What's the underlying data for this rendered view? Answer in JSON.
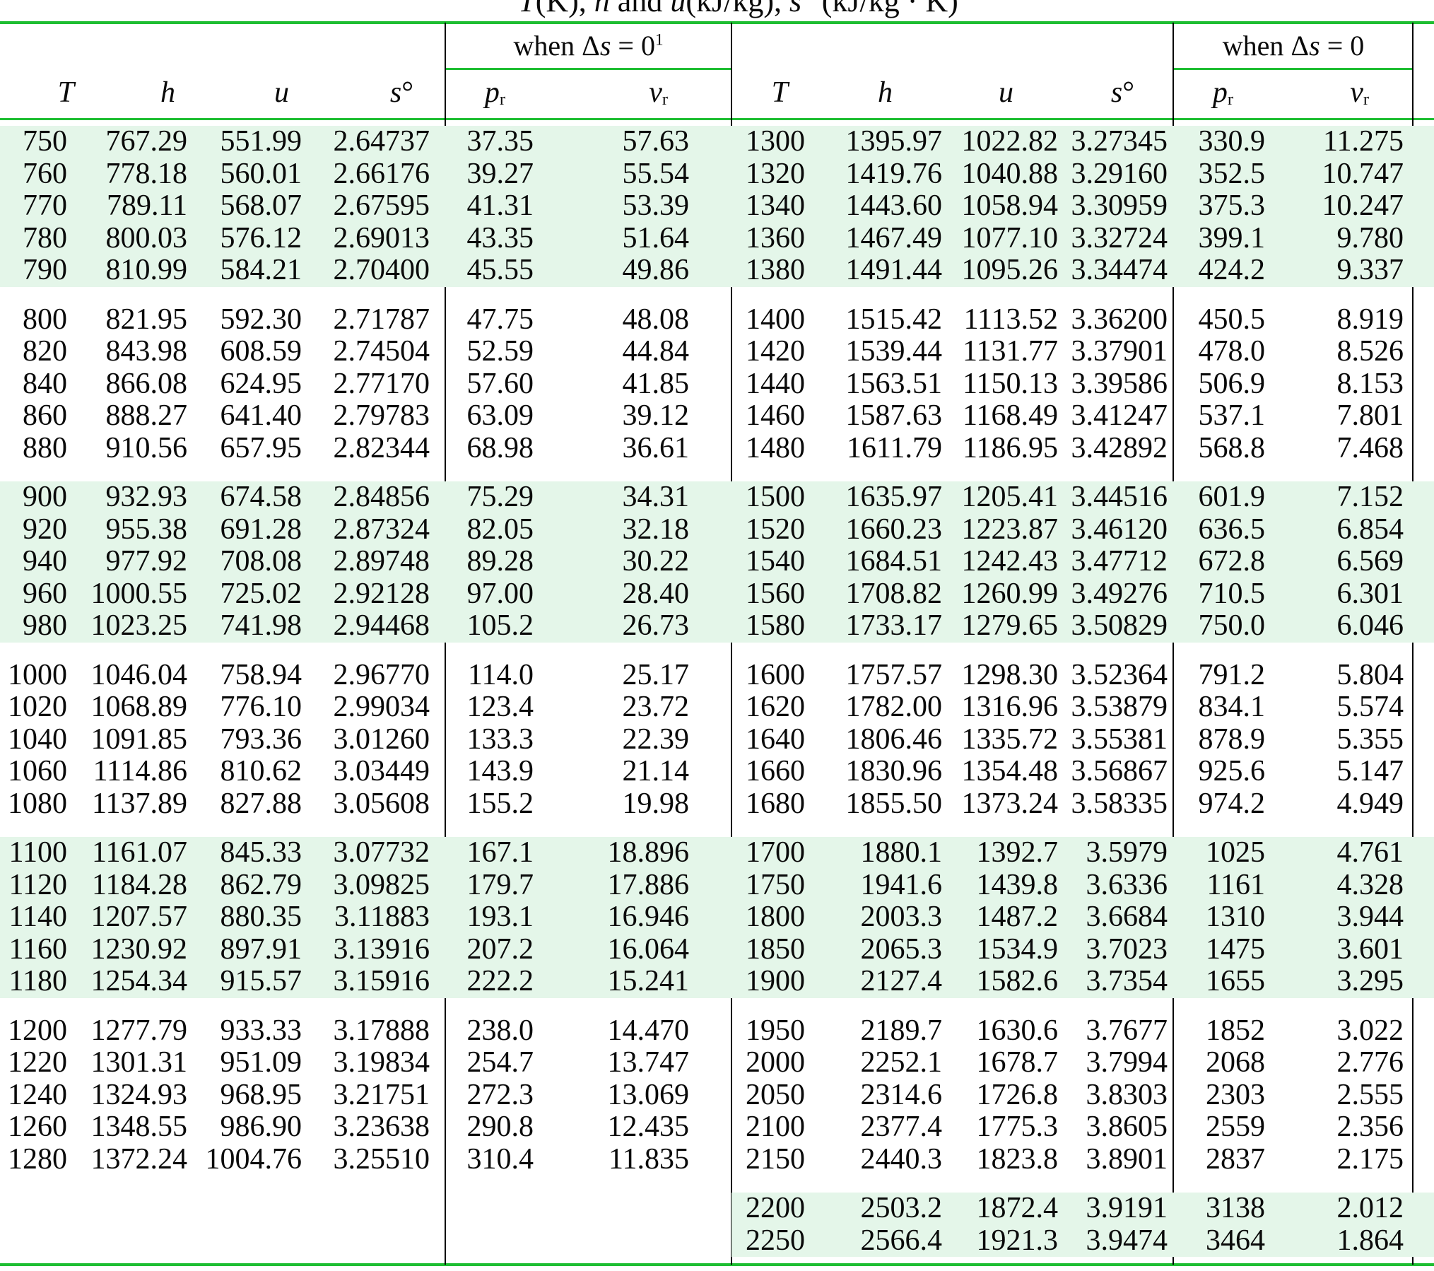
{
  "title_segments": [
    {
      "t": "T",
      "i": true
    },
    {
      "t": "(K), "
    },
    {
      "t": "h",
      "i": true
    },
    {
      "t": " and "
    },
    {
      "t": "u",
      "i": true
    },
    {
      "t": "(kJ/kg), "
    },
    {
      "t": "s",
      "i": true
    },
    {
      "t": "°"
    },
    {
      "t": " (kJ/kg · K)"
    }
  ],
  "header": {
    "when_left": [
      {
        "t": "when Δ"
      },
      {
        "t": "s",
        "i": true
      },
      {
        "t": " = 0"
      },
      {
        "t": "1",
        "sup": true
      }
    ],
    "when_right": [
      {
        "t": "when Δ"
      },
      {
        "t": "s",
        "i": true
      },
      {
        "t": " = 0"
      }
    ],
    "columns": [
      {
        "key": "left-T",
        "segs": [
          {
            "t": "T",
            "i": true
          }
        ]
      },
      {
        "key": "left-h",
        "segs": [
          {
            "t": "h",
            "i": true
          }
        ]
      },
      {
        "key": "left-u",
        "segs": [
          {
            "t": "u",
            "i": true
          }
        ]
      },
      {
        "key": "left-s0",
        "segs": [
          {
            "t": "s",
            "i": true
          },
          {
            "t": "°"
          }
        ]
      },
      {
        "key": "left-pr",
        "segs": [
          {
            "t": "p",
            "i": true
          },
          {
            "t": "r",
            "sub": true
          }
        ]
      },
      {
        "key": "left-vr",
        "segs": [
          {
            "t": "v",
            "i": true
          },
          {
            "t": "r",
            "sub": true
          }
        ]
      },
      {
        "key": "right-T",
        "segs": [
          {
            "t": "T",
            "i": true
          }
        ]
      },
      {
        "key": "right-h",
        "segs": [
          {
            "t": "h",
            "i": true
          }
        ]
      },
      {
        "key": "right-u",
        "segs": [
          {
            "t": "u",
            "i": true
          }
        ]
      },
      {
        "key": "right-s0",
        "segs": [
          {
            "t": "s",
            "i": true
          },
          {
            "t": "°"
          }
        ]
      },
      {
        "key": "right-pr",
        "segs": [
          {
            "t": "p",
            "i": true
          },
          {
            "t": "r",
            "sub": true
          }
        ]
      },
      {
        "key": "right-vr",
        "segs": [
          {
            "t": "v",
            "i": true
          },
          {
            "t": "r",
            "sub": true
          }
        ]
      }
    ],
    "column_keys": [
      "T",
      "h",
      "u",
      "s0",
      "pr",
      "vr"
    ]
  },
  "colors": {
    "rule_green": "#1ebe32",
    "band_green": "#e4f6e9",
    "rule_black": "#000000"
  },
  "groups": [
    {
      "shading": "full",
      "rows": [
        {
          "left": [
            "750",
            "767.29",
            "551.99",
            "2.64737",
            "37.35",
            "57.63"
          ],
          "right": [
            "1300",
            "1395.97",
            "1022.82",
            "3.27345",
            "330.9",
            "11.275"
          ]
        },
        {
          "left": [
            "760",
            "778.18",
            "560.01",
            "2.66176",
            "39.27",
            "55.54"
          ],
          "right": [
            "1320",
            "1419.76",
            "1040.88",
            "3.29160",
            "352.5",
            "10.747"
          ]
        },
        {
          "left": [
            "770",
            "789.11",
            "568.07",
            "2.67595",
            "41.31",
            "53.39"
          ],
          "right": [
            "1340",
            "1443.60",
            "1058.94",
            "3.30959",
            "375.3",
            "10.247"
          ]
        },
        {
          "left": [
            "780",
            "800.03",
            "576.12",
            "2.69013",
            "43.35",
            "51.64"
          ],
          "right": [
            "1360",
            "1467.49",
            "1077.10",
            "3.32724",
            "399.1",
            "9.780"
          ]
        },
        {
          "left": [
            "790",
            "810.99",
            "584.21",
            "2.70400",
            "45.55",
            "49.86"
          ],
          "right": [
            "1380",
            "1491.44",
            "1095.26",
            "3.34474",
            "424.2",
            "9.337"
          ]
        }
      ]
    },
    {
      "shading": "none",
      "rows": [
        {
          "left": [
            "800",
            "821.95",
            "592.30",
            "2.71787",
            "47.75",
            "48.08"
          ],
          "right": [
            "1400",
            "1515.42",
            "1113.52",
            "3.36200",
            "450.5",
            "8.919"
          ]
        },
        {
          "left": [
            "820",
            "843.98",
            "608.59",
            "2.74504",
            "52.59",
            "44.84"
          ],
          "right": [
            "1420",
            "1539.44",
            "1131.77",
            "3.37901",
            "478.0",
            "8.526"
          ]
        },
        {
          "left": [
            "840",
            "866.08",
            "624.95",
            "2.77170",
            "57.60",
            "41.85"
          ],
          "right": [
            "1440",
            "1563.51",
            "1150.13",
            "3.39586",
            "506.9",
            "8.153"
          ]
        },
        {
          "left": [
            "860",
            "888.27",
            "641.40",
            "2.79783",
            "63.09",
            "39.12"
          ],
          "right": [
            "1460",
            "1587.63",
            "1168.49",
            "3.41247",
            "537.1",
            "7.801"
          ]
        },
        {
          "left": [
            "880",
            "910.56",
            "657.95",
            "2.82344",
            "68.98",
            "36.61"
          ],
          "right": [
            "1480",
            "1611.79",
            "1186.95",
            "3.42892",
            "568.8",
            "7.468"
          ]
        }
      ]
    },
    {
      "shading": "full",
      "rows": [
        {
          "left": [
            "900",
            "932.93",
            "674.58",
            "2.84856",
            "75.29",
            "34.31"
          ],
          "right": [
            "1500",
            "1635.97",
            "1205.41",
            "3.44516",
            "601.9",
            "7.152"
          ]
        },
        {
          "left": [
            "920",
            "955.38",
            "691.28",
            "2.87324",
            "82.05",
            "32.18"
          ],
          "right": [
            "1520",
            "1660.23",
            "1223.87",
            "3.46120",
            "636.5",
            "6.854"
          ]
        },
        {
          "left": [
            "940",
            "977.92",
            "708.08",
            "2.89748",
            "89.28",
            "30.22"
          ],
          "right": [
            "1540",
            "1684.51",
            "1242.43",
            "3.47712",
            "672.8",
            "6.569"
          ]
        },
        {
          "left": [
            "960",
            "1000.55",
            "725.02",
            "2.92128",
            "97.00",
            "28.40"
          ],
          "right": [
            "1560",
            "1708.82",
            "1260.99",
            "3.49276",
            "710.5",
            "6.301"
          ]
        },
        {
          "left": [
            "980",
            "1023.25",
            "741.98",
            "2.94468",
            "105.2",
            "26.73"
          ],
          "right": [
            "1580",
            "1733.17",
            "1279.65",
            "3.50829",
            "750.0",
            "6.046"
          ]
        }
      ]
    },
    {
      "shading": "none",
      "rows": [
        {
          "left": [
            "1000",
            "1046.04",
            "758.94",
            "2.96770",
            "114.0",
            "25.17"
          ],
          "right": [
            "1600",
            "1757.57",
            "1298.30",
            "3.52364",
            "791.2",
            "5.804"
          ]
        },
        {
          "left": [
            "1020",
            "1068.89",
            "776.10",
            "2.99034",
            "123.4",
            "23.72"
          ],
          "right": [
            "1620",
            "1782.00",
            "1316.96",
            "3.53879",
            "834.1",
            "5.574"
          ]
        },
        {
          "left": [
            "1040",
            "1091.85",
            "793.36",
            "3.01260",
            "133.3",
            "22.39"
          ],
          "right": [
            "1640",
            "1806.46",
            "1335.72",
            "3.55381",
            "878.9",
            "5.355"
          ]
        },
        {
          "left": [
            "1060",
            "1114.86",
            "810.62",
            "3.03449",
            "143.9",
            "21.14"
          ],
          "right": [
            "1660",
            "1830.96",
            "1354.48",
            "3.56867",
            "925.6",
            "5.147"
          ]
        },
        {
          "left": [
            "1080",
            "1137.89",
            "827.88",
            "3.05608",
            "155.2",
            "19.98"
          ],
          "right": [
            "1680",
            "1855.50",
            "1373.24",
            "3.58335",
            "974.2",
            "4.949"
          ]
        }
      ]
    },
    {
      "shading": "full",
      "rows": [
        {
          "left": [
            "1100",
            "1161.07",
            "845.33",
            "3.07732",
            "167.1",
            "18.896"
          ],
          "right": [
            "1700",
            "1880.1",
            "1392.7",
            "3.5979",
            "1025",
            "4.761"
          ]
        },
        {
          "left": [
            "1120",
            "1184.28",
            "862.79",
            "3.09825",
            "179.7",
            "17.886"
          ],
          "right": [
            "1750",
            "1941.6",
            "1439.8",
            "3.6336",
            "1161",
            "4.328"
          ]
        },
        {
          "left": [
            "1140",
            "1207.57",
            "880.35",
            "3.11883",
            "193.1",
            "16.946"
          ],
          "right": [
            "1800",
            "2003.3",
            "1487.2",
            "3.6684",
            "1310",
            "3.944"
          ]
        },
        {
          "left": [
            "1160",
            "1230.92",
            "897.91",
            "3.13916",
            "207.2",
            "16.064"
          ],
          "right": [
            "1850",
            "2065.3",
            "1534.9",
            "3.7023",
            "1475",
            "3.601"
          ]
        },
        {
          "left": [
            "1180",
            "1254.34",
            "915.57",
            "3.15916",
            "222.2",
            "15.241"
          ],
          "right": [
            "1900",
            "2127.4",
            "1582.6",
            "3.7354",
            "1655",
            "3.295"
          ]
        }
      ]
    },
    {
      "shading": "none",
      "rows": [
        {
          "left": [
            "1200",
            "1277.79",
            "933.33",
            "3.17888",
            "238.0",
            "14.470"
          ],
          "right": [
            "1950",
            "2189.7",
            "1630.6",
            "3.7677",
            "1852",
            "3.022"
          ]
        },
        {
          "left": [
            "1220",
            "1301.31",
            "951.09",
            "3.19834",
            "254.7",
            "13.747"
          ],
          "right": [
            "2000",
            "2252.1",
            "1678.7",
            "3.7994",
            "2068",
            "2.776"
          ]
        },
        {
          "left": [
            "1240",
            "1324.93",
            "968.95",
            "3.21751",
            "272.3",
            "13.069"
          ],
          "right": [
            "2050",
            "2314.6",
            "1726.8",
            "3.8303",
            "2303",
            "2.555"
          ]
        },
        {
          "left": [
            "1260",
            "1348.55",
            "986.90",
            "3.23638",
            "290.8",
            "12.435"
          ],
          "right": [
            "2100",
            "2377.4",
            "1775.3",
            "3.8605",
            "2559",
            "2.356"
          ]
        },
        {
          "left": [
            "1280",
            "1372.24",
            "1004.76",
            "3.25510",
            "310.4",
            "11.835"
          ],
          "right": [
            "2150",
            "2440.3",
            "1823.8",
            "3.8901",
            "2837",
            "2.175"
          ]
        }
      ]
    },
    {
      "shading": "right",
      "rows": [
        {
          "left": null,
          "right": [
            "2200",
            "2503.2",
            "1872.4",
            "3.9191",
            "3138",
            "2.012"
          ]
        },
        {
          "left": null,
          "right": [
            "2250",
            "2566.4",
            "1921.3",
            "3.9474",
            "3464",
            "1.864"
          ]
        }
      ]
    }
  ]
}
